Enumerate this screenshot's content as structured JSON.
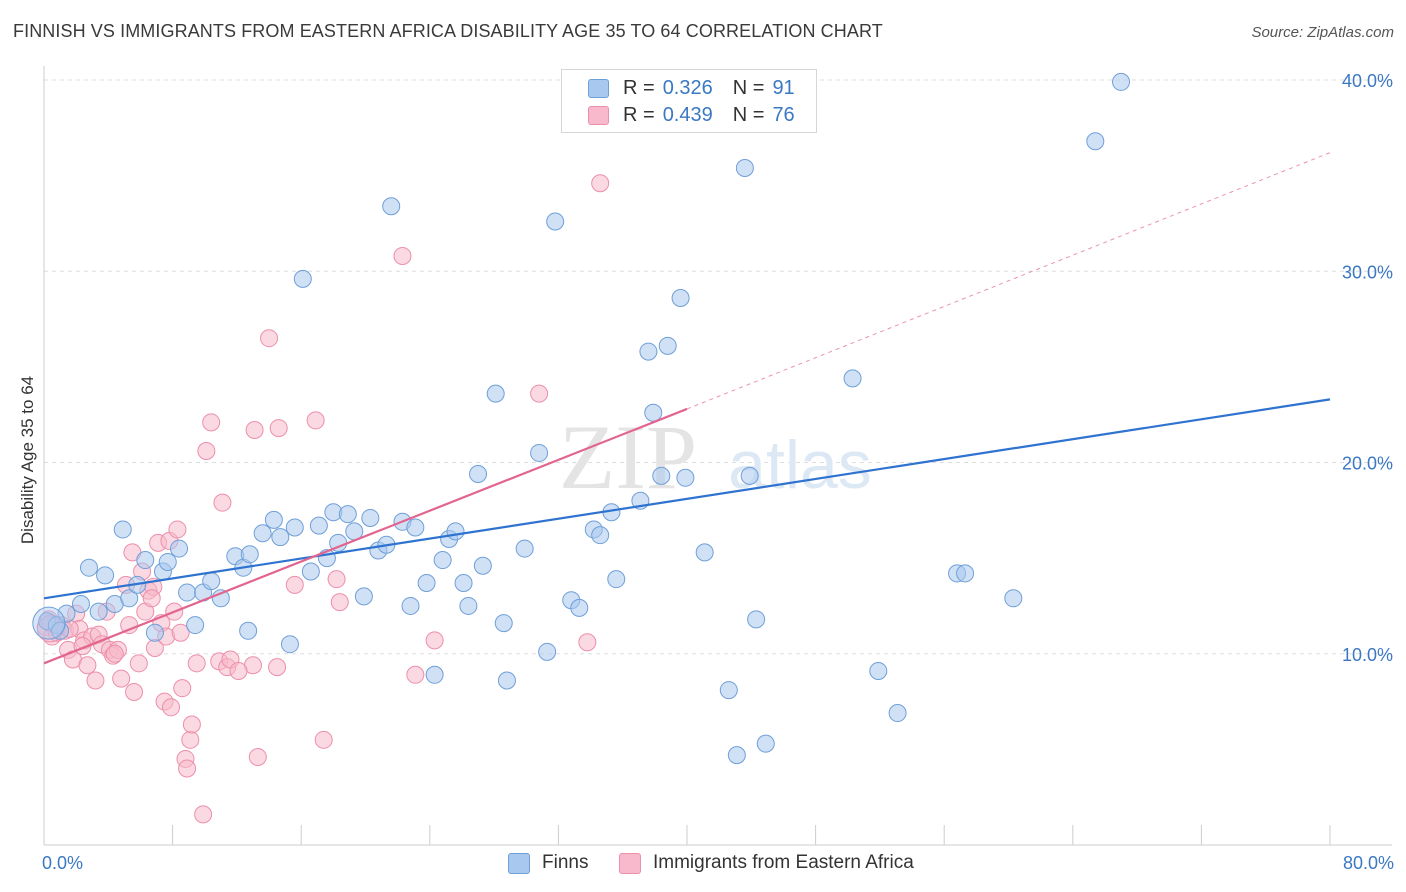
{
  "header": {
    "title": "FINNISH VS IMMIGRANTS FROM EASTERN AFRICA DISABILITY AGE 35 TO 64 CORRELATION CHART",
    "source": "Source: ZipAtlas.com"
  },
  "watermark": {
    "zip": "ZIP",
    "atlas": "atlas"
  },
  "legend_top": {
    "r_label": "R =",
    "n_label": "N =",
    "rows": [
      {
        "r": "0.326",
        "n": "91"
      },
      {
        "r": "0.439",
        "n": "76"
      }
    ]
  },
  "legend_bottom": {
    "items": [
      "Finns",
      "Immigrants from Eastern Africa"
    ]
  },
  "chart_data": {
    "type": "scatter",
    "title": "FINNISH VS IMMIGRANTS FROM EASTERN AFRICA DISABILITY AGE 35 TO 64 CORRELATION CHART",
    "xlabel": "",
    "ylabel": "Disability Age 35 to 64",
    "xlim": [
      0,
      80
    ],
    "ylim": [
      0,
      40
    ],
    "x_tick_labels": [
      "0.0%",
      "80.0%"
    ],
    "y_ticks": [
      10,
      20,
      30,
      40
    ],
    "y_tick_labels": [
      "10.0%",
      "20.0%",
      "30.0%",
      "40.0%"
    ],
    "grid": true,
    "legend_position": "top-center",
    "colors": {
      "finns_fill": "#a9c8ef",
      "finns_stroke": "#6f9fd8",
      "finns_line": "#2f73d0",
      "africa_fill": "#f7b9cb",
      "africa_stroke": "#ec8fab",
      "africa_line": "#e2658f",
      "tick_label": "#3b78c4",
      "grid": "#dddddd"
    },
    "series": [
      {
        "name": "Finns",
        "r": 0.326,
        "n": 91,
        "trend": {
          "x": [
            0,
            80
          ],
          "y": [
            12.9,
            23.3
          ]
        },
        "points": [
          [
            0.2,
            11.7
          ],
          [
            0.8,
            11.5
          ],
          [
            1.0,
            11.2
          ],
          [
            1.4,
            12.1
          ],
          [
            2.3,
            12.6
          ],
          [
            2.8,
            14.5
          ],
          [
            3.8,
            14.1
          ],
          [
            4.4,
            12.6
          ],
          [
            4.9,
            16.5
          ],
          [
            5.3,
            12.9
          ],
          [
            5.8,
            13.6
          ],
          [
            6.3,
            14.9
          ],
          [
            6.9,
            11.1
          ],
          [
            7.4,
            14.3
          ],
          [
            7.7,
            14.8
          ],
          [
            8.4,
            15.5
          ],
          [
            8.9,
            13.2
          ],
          [
            9.4,
            11.5
          ],
          [
            9.9,
            13.2
          ],
          [
            10.4,
            13.8
          ],
          [
            11.0,
            12.9
          ],
          [
            11.9,
            15.1
          ],
          [
            12.4,
            14.5
          ],
          [
            12.8,
            15.2
          ],
          [
            12.7,
            11.2
          ],
          [
            13.6,
            16.3
          ],
          [
            14.3,
            17.0
          ],
          [
            14.7,
            16.1
          ],
          [
            15.3,
            10.5
          ],
          [
            15.6,
            16.6
          ],
          [
            16.1,
            29.6
          ],
          [
            16.6,
            14.3
          ],
          [
            17.1,
            16.7
          ],
          [
            17.6,
            15.0
          ],
          [
            18.0,
            17.4
          ],
          [
            18.3,
            15.8
          ],
          [
            18.9,
            17.3
          ],
          [
            19.3,
            16.4
          ],
          [
            19.9,
            13.0
          ],
          [
            20.3,
            17.1
          ],
          [
            20.8,
            15.4
          ],
          [
            21.3,
            15.7
          ],
          [
            21.6,
            33.4
          ],
          [
            22.3,
            16.9
          ],
          [
            22.8,
            12.5
          ],
          [
            23.1,
            16.6
          ],
          [
            23.8,
            13.7
          ],
          [
            24.3,
            8.9
          ],
          [
            24.8,
            14.9
          ],
          [
            25.2,
            16.0
          ],
          [
            25.6,
            16.4
          ],
          [
            26.1,
            13.7
          ],
          [
            26.4,
            12.5
          ],
          [
            27.0,
            19.4
          ],
          [
            27.3,
            14.6
          ],
          [
            28.1,
            23.6
          ],
          [
            28.6,
            11.6
          ],
          [
            28.8,
            8.6
          ],
          [
            29.9,
            15.5
          ],
          [
            30.8,
            20.5
          ],
          [
            31.3,
            10.1
          ],
          [
            31.8,
            32.6
          ],
          [
            32.8,
            12.8
          ],
          [
            33.3,
            12.4
          ],
          [
            34.2,
            16.5
          ],
          [
            34.6,
            16.2
          ],
          [
            35.3,
            17.4
          ],
          [
            35.6,
            13.9
          ],
          [
            37.1,
            18.0
          ],
          [
            37.6,
            25.8
          ],
          [
            37.9,
            22.6
          ],
          [
            38.4,
            19.3
          ],
          [
            38.8,
            26.1
          ],
          [
            39.6,
            28.6
          ],
          [
            39.9,
            19.2
          ],
          [
            41.1,
            15.3
          ],
          [
            42.6,
            8.1
          ],
          [
            43.1,
            4.7
          ],
          [
            43.6,
            35.4
          ],
          [
            43.9,
            19.3
          ],
          [
            44.3,
            11.8
          ],
          [
            44.9,
            5.3
          ],
          [
            50.3,
            24.4
          ],
          [
            51.9,
            9.1
          ],
          [
            53.1,
            6.9
          ],
          [
            56.8,
            14.2
          ],
          [
            57.3,
            14.2
          ],
          [
            60.3,
            12.9
          ],
          [
            65.4,
            36.8
          ],
          [
            67.0,
            39.9
          ],
          [
            3.4,
            12.2
          ]
        ]
      },
      {
        "name": "Immigrants from Eastern Africa",
        "r": 0.439,
        "n": 76,
        "trend": {
          "x": [
            0,
            40
          ],
          "y": [
            9.5,
            22.8
          ]
        },
        "trend_dashed": {
          "x": [
            40,
            80
          ],
          "y": [
            22.8,
            36.2
          ]
        },
        "points": [
          [
            0.1,
            11.4
          ],
          [
            0.3,
            11.8
          ],
          [
            0.5,
            10.9
          ],
          [
            0.8,
            11.1
          ],
          [
            1.1,
            11.5
          ],
          [
            1.3,
            11.2
          ],
          [
            1.5,
            10.2
          ],
          [
            1.8,
            9.7
          ],
          [
            2.0,
            12.1
          ],
          [
            2.2,
            11.3
          ],
          [
            2.5,
            10.7
          ],
          [
            2.7,
            9.4
          ],
          [
            3.0,
            10.9
          ],
          [
            3.2,
            8.6
          ],
          [
            3.4,
            11.0
          ],
          [
            3.6,
            10.5
          ],
          [
            3.9,
            12.2
          ],
          [
            4.1,
            10.2
          ],
          [
            4.3,
            9.9
          ],
          [
            4.6,
            10.2
          ],
          [
            4.8,
            8.7
          ],
          [
            5.1,
            13.6
          ],
          [
            5.3,
            11.5
          ],
          [
            5.5,
            15.3
          ],
          [
            5.6,
            8.0
          ],
          [
            5.9,
            9.5
          ],
          [
            6.1,
            14.3
          ],
          [
            6.3,
            12.2
          ],
          [
            6.5,
            13.3
          ],
          [
            6.8,
            13.5
          ],
          [
            6.9,
            10.3
          ],
          [
            7.1,
            15.8
          ],
          [
            7.3,
            11.6
          ],
          [
            7.5,
            7.5
          ],
          [
            7.6,
            10.9
          ],
          [
            7.8,
            15.9
          ],
          [
            7.9,
            7.2
          ],
          [
            8.1,
            12.2
          ],
          [
            8.3,
            16.5
          ],
          [
            8.5,
            11.1
          ],
          [
            8.6,
            8.2
          ],
          [
            8.8,
            4.5
          ],
          [
            8.9,
            4.0
          ],
          [
            9.1,
            5.5
          ],
          [
            9.2,
            6.3
          ],
          [
            9.5,
            9.5
          ],
          [
            9.9,
            1.6
          ],
          [
            10.1,
            20.6
          ],
          [
            10.4,
            22.1
          ],
          [
            10.9,
            9.6
          ],
          [
            11.1,
            17.9
          ],
          [
            11.4,
            9.3
          ],
          [
            11.6,
            9.7
          ],
          [
            13.0,
            9.4
          ],
          [
            13.1,
            21.7
          ],
          [
            13.3,
            4.6
          ],
          [
            14.0,
            26.5
          ],
          [
            14.5,
            9.3
          ],
          [
            14.6,
            21.8
          ],
          [
            15.6,
            13.6
          ],
          [
            16.9,
            22.2
          ],
          [
            17.4,
            5.5
          ],
          [
            18.2,
            13.9
          ],
          [
            18.4,
            12.7
          ],
          [
            22.3,
            30.8
          ],
          [
            23.1,
            8.9
          ],
          [
            24.3,
            10.7
          ],
          [
            30.8,
            23.6
          ],
          [
            33.8,
            10.6
          ],
          [
            34.6,
            34.6
          ],
          [
            0.4,
            11.6
          ],
          [
            1.6,
            11.3
          ],
          [
            2.4,
            10.4
          ],
          [
            4.4,
            10.0
          ],
          [
            6.7,
            12.9
          ],
          [
            12.1,
            9.1
          ]
        ]
      }
    ]
  }
}
